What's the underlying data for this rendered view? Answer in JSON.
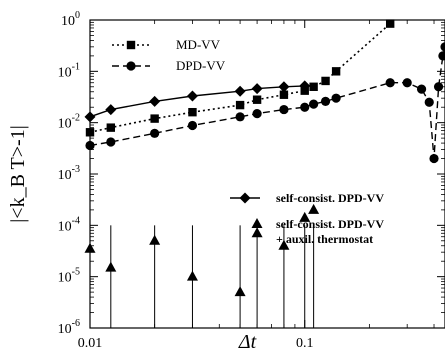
{
  "chart_data": {
    "type": "line",
    "title": "",
    "xlabel": "Δt",
    "ylabel": "|<k_B T>-1|",
    "x_scale": "log",
    "y_scale": "log",
    "xlim": [
      0.01,
      0.45
    ],
    "ylim": [
      1e-06,
      1
    ],
    "x_ticks": [
      {
        "value": 0.01,
        "label": "0.01"
      },
      {
        "value": 0.1,
        "label": "0.1"
      }
    ],
    "y_ticks": [
      {
        "value": 1e-06,
        "exp": "-6"
      },
      {
        "value": 1e-05,
        "exp": "-5"
      },
      {
        "value": 0.0001,
        "exp": "-4"
      },
      {
        "value": 0.001,
        "exp": "-3"
      },
      {
        "value": 0.01,
        "exp": "-2"
      },
      {
        "value": 0.1,
        "exp": "-1"
      },
      {
        "value": 1,
        "exp": "0"
      }
    ],
    "series": [
      {
        "name": "MD-VV",
        "marker": "square",
        "line": "dotted",
        "x": [
          0.01,
          0.0125,
          0.02,
          0.03,
          0.05,
          0.06,
          0.08,
          0.1,
          0.11,
          0.125,
          0.14,
          0.25
        ],
        "y": [
          0.0065,
          0.008,
          0.012,
          0.016,
          0.022,
          0.028,
          0.035,
          0.042,
          0.05,
          0.065,
          0.1,
          0.85
        ]
      },
      {
        "name": "DPD-VV",
        "marker": "circle",
        "line": "dashed",
        "x": [
          0.01,
          0.0125,
          0.02,
          0.03,
          0.05,
          0.06,
          0.08,
          0.1,
          0.11,
          0.125,
          0.14,
          0.25,
          0.3,
          0.35,
          0.38,
          0.4,
          0.42,
          0.44,
          0.45
        ],
        "y": [
          0.0036,
          0.0042,
          0.0062,
          0.0088,
          0.013,
          0.015,
          0.018,
          0.02,
          0.023,
          0.026,
          0.03,
          0.06,
          0.06,
          0.045,
          0.025,
          0.002,
          0.05,
          0.2,
          0.3
        ]
      },
      {
        "name": "self-consist. DPD-VV",
        "marker": "diamond",
        "line": "solid",
        "x": [
          0.01,
          0.0125,
          0.02,
          0.03,
          0.05,
          0.06,
          0.08,
          0.1
        ],
        "y": [
          0.013,
          0.018,
          0.026,
          0.033,
          0.041,
          0.046,
          0.05,
          0.052
        ]
      },
      {
        "name": "self-consist. DPD-VV + auxil. thermostat",
        "marker": "triangle",
        "line": "none",
        "x": [
          0.01,
          0.0125,
          0.02,
          0.03,
          0.05,
          0.06,
          0.08,
          0.1,
          0.11
        ],
        "y": [
          3.5e-05,
          1.5e-05,
          5e-05,
          1e-05,
          5e-06,
          7e-05,
          4e-05,
          0.00014,
          0.0002
        ],
        "error_low": [
          1e-06,
          1e-06,
          1e-06,
          1e-06,
          1e-06,
          1e-06,
          1e-06,
          1e-06,
          1e-06
        ],
        "error_high": [
          0.0001,
          0.0001,
          0.0001,
          0.0001,
          0.0001,
          0.0001,
          0.0001,
          0.0001,
          0.0001
        ]
      }
    ],
    "legend": [
      {
        "label": "MD-VV",
        "marker": "square",
        "line": "dotted"
      },
      {
        "label": "DPD-VV",
        "marker": "circle",
        "line": "dashed"
      },
      {
        "label": "self-consist. DPD-VV",
        "marker": "diamond",
        "line": "solid"
      },
      {
        "label": "self-consist. DPD-VV",
        "label2": "+ auxil. thermostat",
        "marker": "triangle",
        "line": "none"
      }
    ],
    "legend_placement": "top-left and right-middle",
    "grid": false
  }
}
